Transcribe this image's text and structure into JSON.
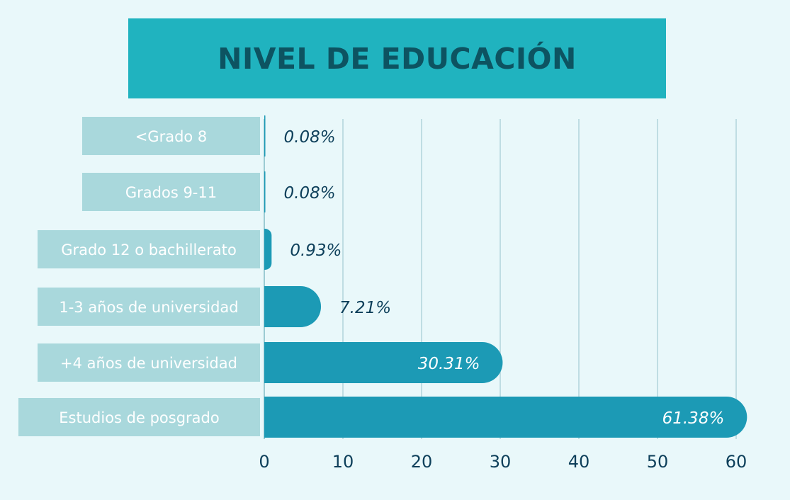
{
  "colors": {
    "background": "#e9f8fa",
    "title_box": "#20b3bf",
    "title_text": "#0d5361",
    "label_box": "#a9d8dc",
    "bar": "#1c9ab5",
    "grid": "#bfdde3",
    "axis_text": "#0d3f5a",
    "value_outside": "#0d3f5a",
    "value_inside": "#ffffff"
  },
  "chart_data": {
    "type": "bar",
    "orientation": "horizontal",
    "title": "NIVEL DE EDUCACIÓN",
    "categories": [
      "<Grado 8",
      "Grados 9-11",
      "Grado 12 o bachillerato",
      "1-3 años de universidad",
      "+4 años de universidad",
      "Estudios de posgrado"
    ],
    "values": [
      0.08,
      0.08,
      0.93,
      7.21,
      30.31,
      61.38
    ],
    "value_labels": [
      "0.08%",
      "0.08%",
      "0.93%",
      "7.21%",
      "30.31%",
      "61.38%"
    ],
    "xlim": [
      0,
      60
    ],
    "xticks": [
      0,
      10,
      20,
      30,
      40,
      50,
      60
    ],
    "xtick_labels": [
      "0",
      "10",
      "20",
      "30",
      "40",
      "50",
      "60"
    ],
    "grid": "vertical",
    "xlabel": "",
    "ylabel": ""
  }
}
